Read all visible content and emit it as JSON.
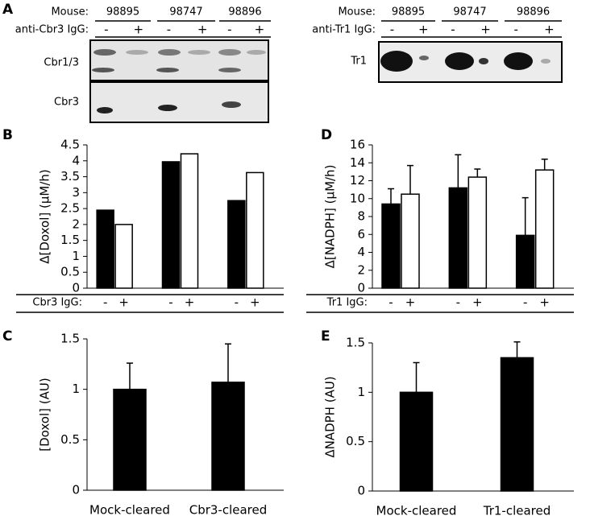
{
  "panel_labels": [
    "A",
    "B",
    "C",
    "D",
    "E"
  ],
  "blots": [
    {
      "mouse_label": "Mouse:",
      "mice": [
        "98895",
        "98747",
        "98896"
      ],
      "treatment_label": "anti-Cbr3 IgG:",
      "lanes": [
        "-",
        "+"
      ],
      "rows": [
        "Cbr1/3",
        "Cbr3"
      ]
    },
    {
      "mouse_label": "Mouse:",
      "mice": [
        "98895",
        "98747",
        "98896"
      ],
      "treatment_label": "anti-Tr1 IgG:",
      "lanes": [
        "-",
        "+"
      ],
      "rows": [
        "Tr1"
      ]
    }
  ],
  "chart_data": [
    {
      "type": "grouped-bar",
      "y_label": "Δ[Doxol] (μM/h)",
      "x_label": "Cbr3 IgG:",
      "categories": [
        null,
        null,
        null
      ],
      "series": [
        {
          "name": "-",
          "color": "#000000",
          "values": [
            2.45,
            3.97,
            2.75
          ]
        },
        {
          "name": "+",
          "color": "#ffffff",
          "values": [
            2.0,
            4.22,
            3.63
          ]
        }
      ],
      "ylim": [
        0,
        4.5
      ],
      "yticks": [
        0,
        0.5,
        1,
        1.5,
        2,
        2.5,
        3,
        3.5,
        4,
        4.5
      ],
      "grid": false
    },
    {
      "type": "bar",
      "y_label": "[Doxol] (AU)",
      "categories": [
        "Mock-cleared",
        "Cbr3-cleared"
      ],
      "values": [
        1,
        1.07
      ],
      "errors": [
        0.26,
        0.38
      ],
      "color": "#000000",
      "ylim": [
        0,
        1.5
      ],
      "yticks": [
        0,
        0.5,
        1,
        1.5
      ],
      "grid": false
    },
    {
      "type": "grouped-bar",
      "y_label": "Δ[NADPH] (μM/h)",
      "x_label": "Tr1 IgG:",
      "categories": [
        null,
        null,
        null
      ],
      "series": [
        {
          "name": "-",
          "color": "#000000",
          "values": [
            9.4,
            11.2,
            5.9
          ],
          "errors": [
            1.7,
            3.7,
            4.2
          ]
        },
        {
          "name": "+",
          "color": "#ffffff",
          "values": [
            10.5,
            12.4,
            13.2
          ],
          "errors": [
            3.2,
            0.9,
            1.2
          ]
        }
      ],
      "ylim": [
        0,
        16
      ],
      "yticks": [
        0,
        2,
        4,
        6,
        8,
        10,
        12,
        14,
        16
      ],
      "grid": false
    },
    {
      "type": "bar",
      "y_label": "ΔNADPH (AU)",
      "categories": [
        "Mock-cleared",
        "Tr1-cleared"
      ],
      "values": [
        1,
        1.35
      ],
      "errors": [
        0.3,
        0.16
      ],
      "color": "#000000",
      "ylim": [
        0,
        1.5
      ],
      "yticks": [
        0,
        0.5,
        1,
        1.5
      ],
      "grid": false
    }
  ]
}
